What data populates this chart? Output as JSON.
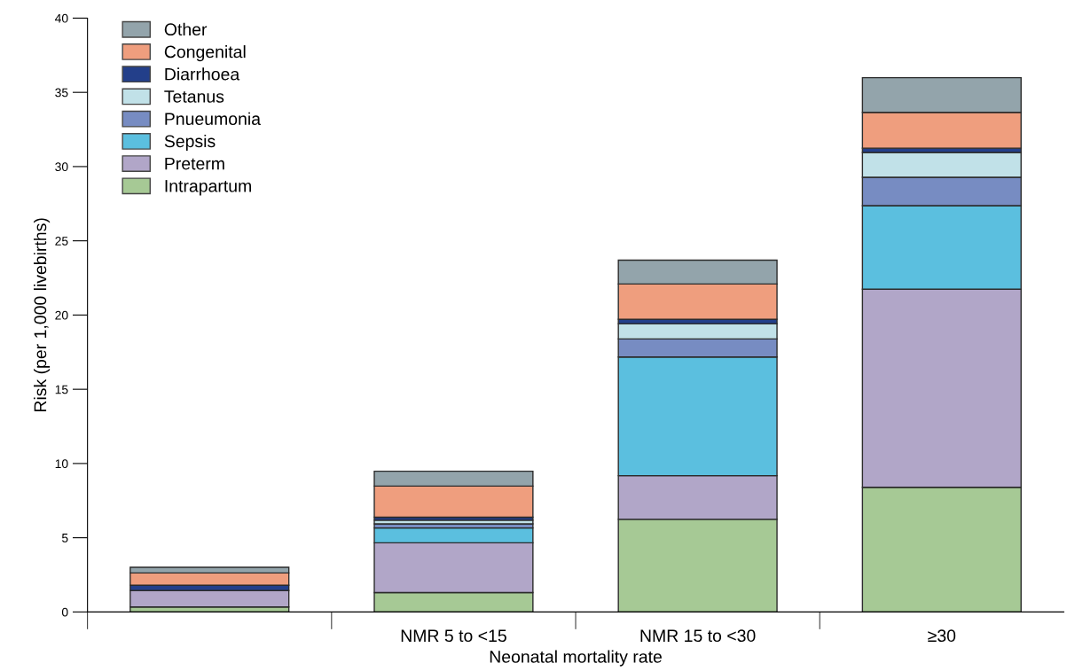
{
  "chart_data": {
    "type": "bar",
    "stacked": true,
    "xlabel": "Neonatal mortality rate",
    "ylabel": "Risk (per 1,000 livebirths)",
    "categories": [
      null,
      "NMR 5 to <15",
      "NMR 15 to <30",
      "≥30"
    ],
    "series": [
      {
        "name": "Intrapartum",
        "color": "#a6c995",
        "values": [
          0.34,
          1.31,
          6.24,
          8.4
        ]
      },
      {
        "name": "Preterm",
        "color": "#b1a6c8",
        "values": [
          1.1,
          3.35,
          2.94,
          13.34
        ]
      },
      {
        "name": "Sepsis",
        "color": "#5bbfdf",
        "values": [
          0,
          1.0,
          7.99,
          5.63
        ]
      },
      {
        "name": "Pnueumonia",
        "color": "#778cc2",
        "values": [
          0,
          0.27,
          1.22,
          1.91
        ]
      },
      {
        "name": "Tetanus",
        "color": "#c1e1e8",
        "values": [
          0,
          0.25,
          1.03,
          1.67
        ]
      },
      {
        "name": "Diarrhoea",
        "color": "#233f8a",
        "values": [
          0.36,
          0.2,
          0.3,
          0.29
        ]
      },
      {
        "name": "Congenital",
        "color": "#ef9e7e",
        "values": [
          0.83,
          2.1,
          2.37,
          2.41
        ]
      },
      {
        "name": "Other",
        "color": "#93a4ab",
        "values": [
          0.38,
          1.0,
          1.61,
          2.34
        ]
      }
    ],
    "ylim": [
      0,
      40
    ],
    "yticks": [
      0,
      5,
      10,
      15,
      20,
      25,
      30,
      35,
      40
    ],
    "grid": false,
    "legend": "top left"
  }
}
